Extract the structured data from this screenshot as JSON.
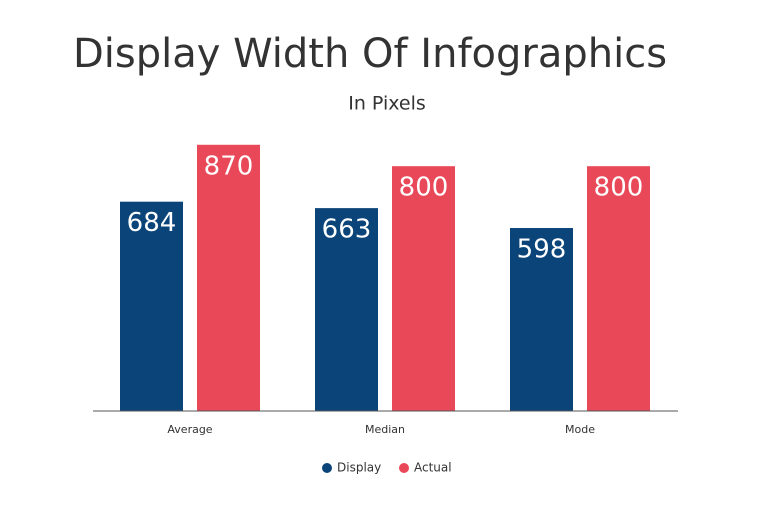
{
  "chart_data": {
    "type": "bar",
    "title": "Display Width Of Infographics",
    "subtitle": "In Pixels",
    "categories": [
      "Average",
      "Median",
      "Mode"
    ],
    "series": [
      {
        "name": "Display",
        "color": "#0b4479",
        "values": [
          684,
          663,
          598
        ]
      },
      {
        "name": "Actual",
        "color": "#e84857",
        "values": [
          870,
          800,
          800
        ]
      }
    ],
    "ylim": [
      0,
      1000
    ],
    "legend": "bottom"
  }
}
